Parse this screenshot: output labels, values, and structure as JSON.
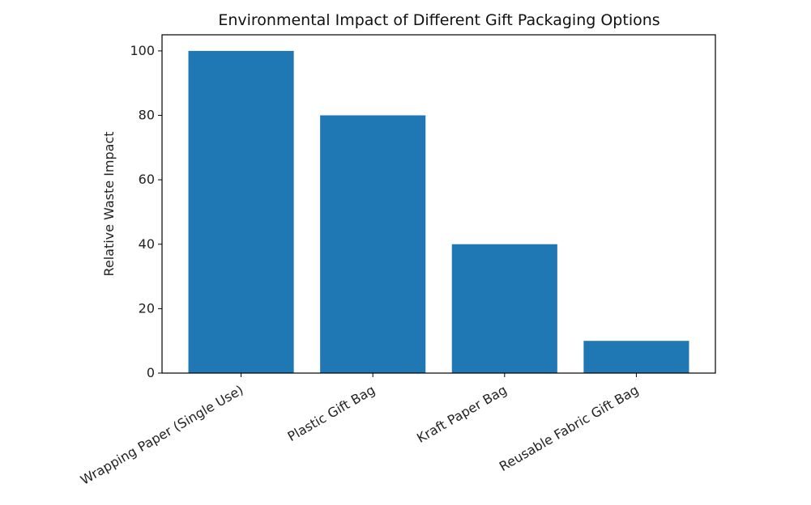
{
  "chart_data": {
    "type": "bar",
    "title": "Environmental Impact of Different Gift Packaging Options",
    "xlabel": "",
    "ylabel": "Relative Waste Impact",
    "categories": [
      "Wrapping Paper (Single Use)",
      "Plastic Gift Bag",
      "Kraft Paper Bag",
      "Reusable Fabric Gift Bag"
    ],
    "values": [
      100,
      80,
      40,
      10
    ],
    "ylim": [
      0,
      105
    ],
    "yticks": [
      0,
      20,
      40,
      60,
      80,
      100
    ],
    "grid": false,
    "legend": false,
    "bar_color": "#1f77b4",
    "axis_color": "#000000"
  }
}
